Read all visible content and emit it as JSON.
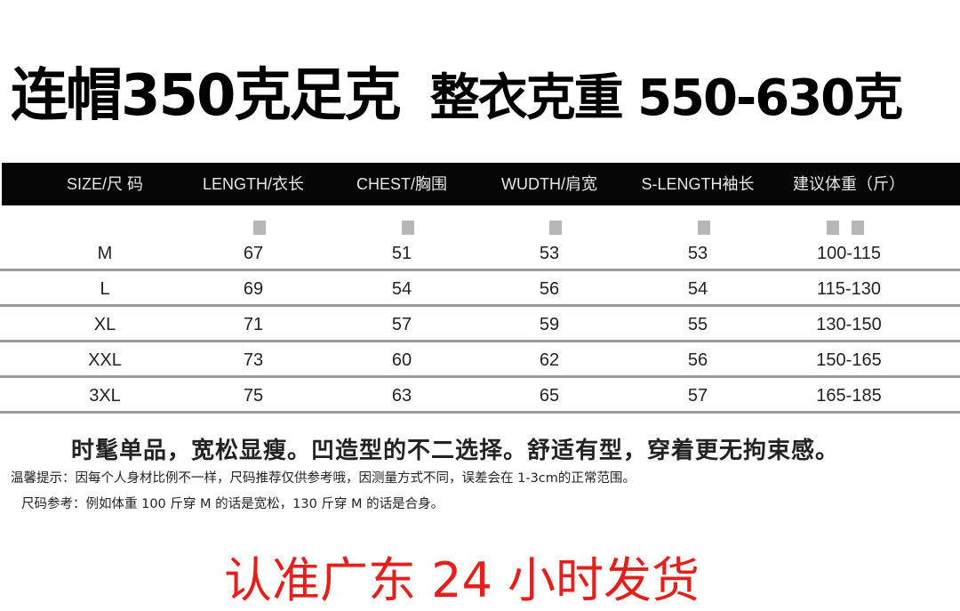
{
  "title": {
    "part1": "连帽350克足克",
    "part2": "整衣克重 550-630克"
  },
  "table": {
    "headers": [
      "SIZE/尺 码",
      "LENGTH/衣长",
      "CHEST/胸围",
      "WUDTH/肩宽",
      "S-LENGTH袖长",
      "建议体重（斤）"
    ],
    "rows": [
      [
        "M",
        "67",
        "51",
        "53",
        "53",
        "100-115"
      ],
      [
        "L",
        "69",
        "54",
        "56",
        "54",
        "115-130"
      ],
      [
        "XL",
        "71",
        "57",
        "59",
        "55",
        "130-150"
      ],
      [
        "XXL",
        "73",
        "60",
        "62",
        "56",
        "150-165"
      ],
      [
        "3XL",
        "75",
        "63",
        "65",
        "57",
        "165-185"
      ]
    ],
    "header_bg": "#050505"
  },
  "slogan": "时髦单品，宽松显瘦。凹造型的不二选择。舒适有型，穿着更无拘束感。",
  "notes": [
    "温馨提示：因每个人身材比例不一样，尺码推荐仅供参考哦，因测量方式不同，误差会在 1-3cm的正常范围。",
    "尺码参考：例如体重 100 斤穿 M 的话是宽松，130 斤穿 M 的话是合身。"
  ],
  "banner": {
    "text": "认准广东 24 小时发货",
    "color": "#e3201b"
  }
}
